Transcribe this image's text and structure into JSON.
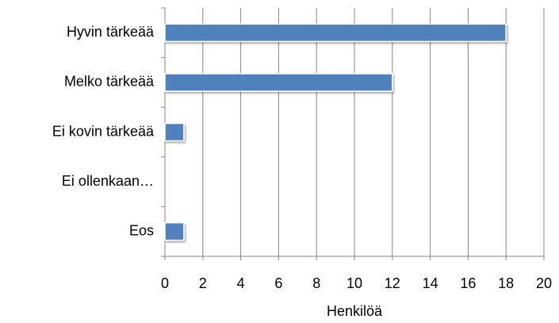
{
  "chart_data": {
    "type": "barh",
    "categories": [
      "Hyvin tärkeää",
      "Melko tärkeää",
      "Ei kovin tärkeää",
      "Ei ollenkaan…",
      "Eos"
    ],
    "values": [
      18,
      12,
      1,
      0,
      1
    ],
    "color": "#4f81bd",
    "xlabel": "Henkilöä",
    "xlim": [
      0,
      20
    ],
    "xticks": [
      0,
      2,
      4,
      6,
      8,
      10,
      12,
      14,
      16,
      18,
      20
    ],
    "grid": true
  }
}
